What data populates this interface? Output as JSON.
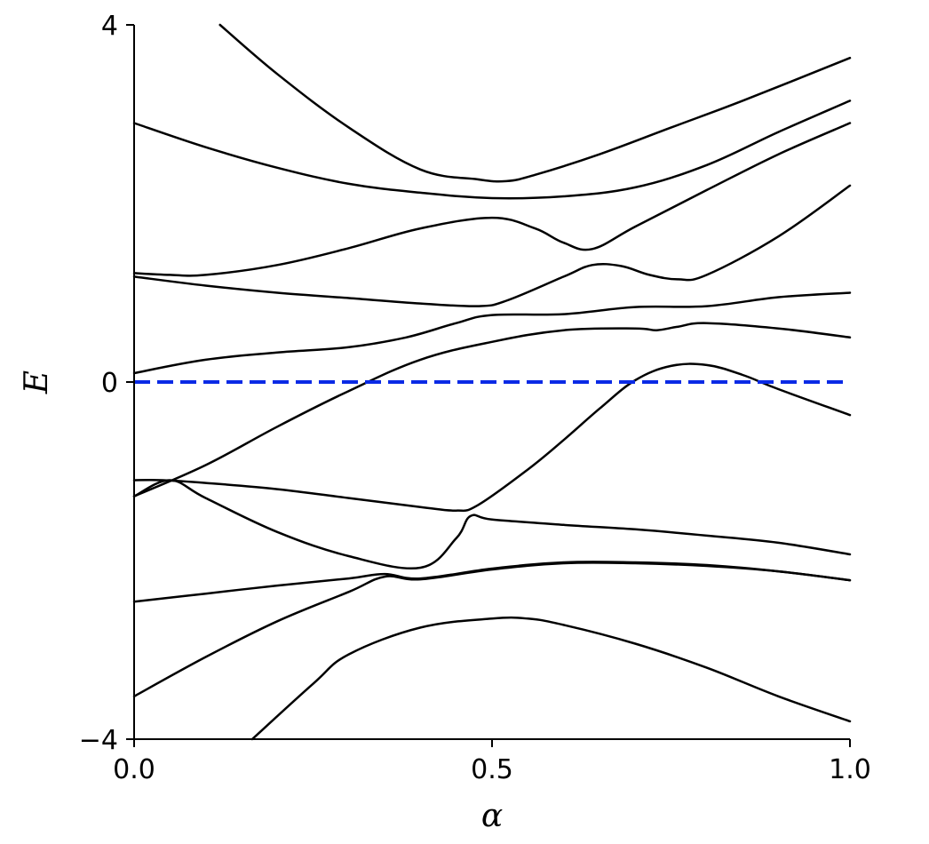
{
  "chart_data": {
    "type": "line",
    "title": "",
    "xlabel": "α",
    "ylabel": "E",
    "xlim": [
      0.0,
      1.0
    ],
    "ylim": [
      -4,
      4
    ],
    "x_ticks": [
      0.0,
      0.5,
      1.0
    ],
    "x_tick_labels": [
      "0.0",
      "0.5",
      "1.0"
    ],
    "y_ticks": [
      -4,
      0,
      4
    ],
    "y_tick_labels": [
      "−4",
      "0",
      "4"
    ],
    "grid": false,
    "legend": "none",
    "colors": {
      "series": "#000000",
      "reference": "#0a2ae6"
    },
    "reference_line": {
      "y": 0,
      "style": "dashed"
    },
    "series": [
      {
        "x": [
          0.12,
          0.2,
          0.3,
          0.4,
          0.48,
          0.52,
          0.56,
          0.65,
          0.75,
          0.85,
          1.0
        ],
        "y": [
          4.0,
          3.45,
          2.85,
          2.38,
          2.27,
          2.25,
          2.32,
          2.55,
          2.85,
          3.15,
          3.63
        ]
      },
      {
        "x": [
          0.0,
          0.1,
          0.2,
          0.3,
          0.4,
          0.5,
          0.6,
          0.7,
          0.8,
          0.9,
          1.0
        ],
        "y": [
          2.9,
          2.63,
          2.4,
          2.22,
          2.12,
          2.06,
          2.08,
          2.18,
          2.43,
          2.8,
          3.15
        ]
      },
      {
        "x": [
          0.0,
          0.05,
          0.1,
          0.2,
          0.3,
          0.4,
          0.5,
          0.56,
          0.6,
          0.64,
          0.7,
          0.8,
          0.9,
          1.0
        ],
        "y": [
          1.22,
          1.2,
          1.2,
          1.31,
          1.5,
          1.72,
          1.84,
          1.72,
          1.56,
          1.49,
          1.74,
          2.15,
          2.55,
          2.9
        ]
      },
      {
        "x": [
          0.0,
          0.1,
          0.2,
          0.3,
          0.4,
          0.48,
          0.52,
          0.6,
          0.64,
          0.68,
          0.72,
          0.76,
          0.8,
          0.9,
          1.0
        ],
        "y": [
          1.18,
          1.08,
          1.0,
          0.94,
          0.88,
          0.85,
          0.91,
          1.18,
          1.31,
          1.3,
          1.2,
          1.15,
          1.2,
          1.63,
          2.2
        ]
      },
      {
        "x": [
          0.0,
          0.1,
          0.2,
          0.3,
          0.38,
          0.45,
          0.5,
          0.6,
          0.7,
          0.8,
          0.9,
          1.0
        ],
        "y": [
          0.1,
          0.25,
          0.33,
          0.39,
          0.5,
          0.66,
          0.75,
          0.76,
          0.84,
          0.85,
          0.95,
          1.0
        ]
      },
      {
        "x": [
          0.0,
          0.1,
          0.2,
          0.3,
          0.4,
          0.5,
          0.6,
          0.7,
          0.73,
          0.76,
          0.8,
          0.9,
          1.0
        ],
        "y": [
          -1.28,
          -0.93,
          -0.5,
          -0.1,
          0.25,
          0.45,
          0.58,
          0.6,
          0.58,
          0.62,
          0.66,
          0.6,
          0.5
        ]
      },
      {
        "x": [
          0.0,
          0.04,
          0.1,
          0.2,
          0.3,
          0.4,
          0.45,
          0.48,
          0.55,
          0.6,
          0.65,
          0.7,
          0.75,
          0.8,
          0.85,
          0.9,
          1.0
        ],
        "y": [
          -1.1,
          -1.1,
          -1.13,
          -1.2,
          -1.3,
          -1.4,
          -1.44,
          -1.38,
          -0.98,
          -0.65,
          -0.3,
          0.02,
          0.18,
          0.19,
          0.08,
          -0.08,
          -0.37
        ]
      },
      {
        "x": [
          0.0,
          0.05,
          0.1,
          0.2,
          0.3,
          0.4,
          0.45,
          0.47,
          0.5,
          0.6,
          0.7,
          0.8,
          0.9,
          1.0
        ],
        "y": [
          -1.28,
          -1.1,
          -1.3,
          -1.68,
          -1.95,
          -2.08,
          -1.75,
          -1.5,
          -1.54,
          -1.6,
          -1.65,
          -1.72,
          -1.8,
          -1.93
        ]
      },
      {
        "x": [
          0.0,
          0.1,
          0.2,
          0.3,
          0.35,
          0.4,
          0.5,
          0.6,
          0.7,
          0.8,
          0.9,
          1.0
        ],
        "y": [
          -2.46,
          -2.37,
          -2.28,
          -2.2,
          -2.15,
          -2.2,
          -2.09,
          -2.02,
          -2.02,
          -2.05,
          -2.12,
          -2.22
        ]
      },
      {
        "x": [
          0.0,
          0.1,
          0.2,
          0.3,
          0.35,
          0.4,
          0.5,
          0.6,
          0.7,
          0.8,
          0.9,
          1.0
        ],
        "y": [
          -3.52,
          -3.08,
          -2.68,
          -2.35,
          -2.18,
          -2.21,
          -2.1,
          -2.03,
          -2.03,
          -2.06,
          -2.12,
          -2.22
        ]
      },
      {
        "x": [
          0.165,
          0.25,
          0.3,
          0.4,
          0.5,
          0.55,
          0.6,
          0.7,
          0.8,
          0.9,
          1.0
        ],
        "y": [
          -4.0,
          -3.38,
          -3.05,
          -2.75,
          -2.65,
          -2.65,
          -2.72,
          -2.93,
          -3.2,
          -3.52,
          -3.8
        ]
      }
    ]
  }
}
